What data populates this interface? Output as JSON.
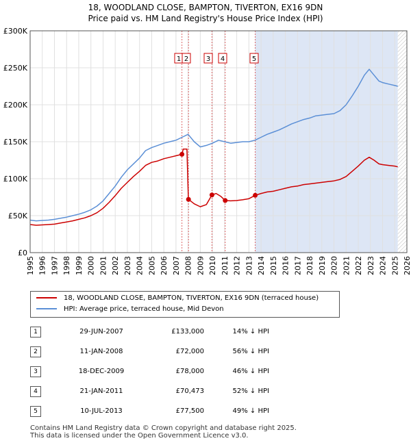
{
  "title_line1": "18, WOODLAND CLOSE, BAMPTON, TIVERTON, EX16 9DN",
  "title_line2": "Price paid vs. HM Land Registry's House Price Index (HPI)",
  "colors": {
    "property": "#cc0000",
    "hpi": "#5b8fd6",
    "shade": "#dde6f5",
    "hatch": "#bbbbbb",
    "grid": "#e0e0e0",
    "marker_line": "#cc0000"
  },
  "legend": {
    "property_label": "18, WOODLAND CLOSE, BAMPTON, TIVERTON, EX16 9DN (terraced house)",
    "hpi_label": "HPI: Average price, terraced house, Mid Devon"
  },
  "transactions": [
    {
      "num": "1",
      "date": "29-JUN-2007",
      "price": "£133,000",
      "hpi": "14% ↓ HPI"
    },
    {
      "num": "2",
      "date": "11-JAN-2008",
      "price": "£72,000",
      "hpi": "56% ↓ HPI"
    },
    {
      "num": "3",
      "date": "18-DEC-2009",
      "price": "£78,000",
      "hpi": "46% ↓ HPI"
    },
    {
      "num": "4",
      "date": "21-JAN-2011",
      "price": "£70,473",
      "hpi": "52% ↓ HPI"
    },
    {
      "num": "5",
      "date": "10-JUL-2013",
      "price": "£77,500",
      "hpi": "49% ↓ HPI"
    }
  ],
  "footer_line1": "Contains HM Land Registry data © Crown copyright and database right 2025.",
  "footer_line2": "This data is licensed under the Open Government Licence v3.0.",
  "chart_data": {
    "type": "line",
    "xlim": [
      1995,
      2026
    ],
    "ylim": [
      0,
      300000
    ],
    "y_ticks": [
      0,
      50000,
      100000,
      150000,
      200000,
      250000,
      300000
    ],
    "y_tick_labels": [
      "£0",
      "£50K",
      "£100K",
      "£150K",
      "£200K",
      "£250K",
      "£300K"
    ],
    "x_ticks": [
      1995,
      1996,
      1997,
      1998,
      1999,
      2000,
      2001,
      2002,
      2003,
      2004,
      2005,
      2006,
      2007,
      2008,
      2009,
      2010,
      2011,
      2012,
      2013,
      2014,
      2015,
      2016,
      2017,
      2018,
      2019,
      2020,
      2021,
      2022,
      2023,
      2024,
      2025,
      2026
    ],
    "x_tick_labels": [
      "1995",
      "1996",
      "1997",
      "1998",
      "1999",
      "2000",
      "2001",
      "2002",
      "2003",
      "2004",
      "2005",
      "2006",
      "2007",
      "2008",
      "2009",
      "2010",
      "2011",
      "2012",
      "2013",
      "2014",
      "2015",
      "2016",
      "2017",
      "2018",
      "2019",
      "2020",
      "2021",
      "2022",
      "2023",
      "2024",
      "2025",
      "2026"
    ],
    "shaded_from": 2013.52,
    "hatched_from": 2025.25,
    "series": [
      {
        "name": "HPI: Average price, terraced house, Mid Devon",
        "x": [
          1995.0,
          1995.5,
          1996.0,
          1996.5,
          1997.0,
          1997.5,
          1998.0,
          1998.5,
          1999.0,
          1999.5,
          2000.0,
          2000.5,
          2001.0,
          2001.5,
          2002.0,
          2002.5,
          2003.0,
          2003.5,
          2004.0,
          2004.5,
          2005.0,
          2005.5,
          2006.0,
          2006.5,
          2007.0,
          2007.5,
          2008.0,
          2008.5,
          2009.0,
          2009.5,
          2010.0,
          2010.5,
          2011.0,
          2011.5,
          2012.0,
          2012.5,
          2013.0,
          2013.5,
          2014.0,
          2014.5,
          2015.0,
          2015.5,
          2016.0,
          2016.5,
          2017.0,
          2017.5,
          2018.0,
          2018.5,
          2019.0,
          2019.5,
          2020.0,
          2020.5,
          2021.0,
          2021.5,
          2022.0,
          2022.5,
          2022.9,
          2023.3,
          2023.7,
          2024.0,
          2024.5,
          2025.0,
          2025.25
        ],
        "values": [
          44000,
          43000,
          43500,
          44000,
          45000,
          46500,
          48000,
          50000,
          52000,
          54500,
          58000,
          63000,
          70000,
          80000,
          90000,
          102000,
          112000,
          120000,
          128000,
          138000,
          142000,
          145000,
          148000,
          150000,
          152000,
          156000,
          160000,
          150000,
          143000,
          145000,
          148000,
          152000,
          150000,
          148000,
          149000,
          150000,
          150000,
          152000,
          156000,
          160000,
          163000,
          166000,
          170000,
          174000,
          177000,
          180000,
          182000,
          185000,
          186000,
          187000,
          188000,
          192000,
          200000,
          212000,
          225000,
          240000,
          248000,
          240000,
          232000,
          230000,
          228000,
          226000,
          225000
        ]
      },
      {
        "name": "18, WOODLAND CLOSE, BAMPTON, TIVERTON, EX16 9DN (terraced house)",
        "x": [
          1995.0,
          1995.5,
          1996.0,
          1996.5,
          1997.0,
          1997.5,
          1998.0,
          1998.5,
          1999.0,
          1999.5,
          2000.0,
          2000.5,
          2001.0,
          2001.5,
          2002.0,
          2002.5,
          2003.0,
          2003.5,
          2004.0,
          2004.5,
          2005.0,
          2005.5,
          2006.0,
          2006.5,
          2007.0,
          2007.49,
          2007.6,
          2007.9,
          2008.02,
          2008.03,
          2008.5,
          2009.0,
          2009.5,
          2009.96,
          2010.3,
          2010.7,
          2011.05,
          2011.5,
          2012.0,
          2012.5,
          2013.0,
          2013.52,
          2014.0,
          2014.5,
          2015.0,
          2015.5,
          2016.0,
          2016.5,
          2017.0,
          2017.5,
          2018.0,
          2018.5,
          2019.0,
          2019.5,
          2020.0,
          2020.5,
          2021.0,
          2021.5,
          2022.0,
          2022.5,
          2022.9,
          2023.3,
          2023.7,
          2024.0,
          2024.5,
          2025.0,
          2025.25
        ],
        "values": [
          38000,
          37000,
          37500,
          38000,
          38500,
          40000,
          41500,
          43000,
          45000,
          47000,
          50000,
          54000,
          60000,
          68000,
          77000,
          87000,
          95000,
          103000,
          110000,
          118000,
          122000,
          124000,
          127000,
          129000,
          131000,
          133000,
          140000,
          140000,
          72000,
          72000,
          66000,
          62000,
          65000,
          78000,
          80000,
          76000,
          70473,
          70000,
          70500,
          71500,
          73000,
          77500,
          80000,
          82000,
          83000,
          85000,
          87000,
          89000,
          90000,
          92000,
          93000,
          94000,
          95000,
          96000,
          97000,
          99000,
          103000,
          110000,
          117000,
          125000,
          129000,
          125000,
          120000,
          119000,
          118000,
          117000,
          116000
        ]
      }
    ],
    "sales": [
      {
        "num": "1",
        "x": 2007.49,
        "value": 133000
      },
      {
        "num": "2",
        "x": 2008.03,
        "value": 72000
      },
      {
        "num": "3",
        "x": 2009.96,
        "value": 78000
      },
      {
        "num": "4",
        "x": 2011.05,
        "value": 70473
      },
      {
        "num": "5",
        "x": 2013.52,
        "value": 77500
      }
    ]
  }
}
